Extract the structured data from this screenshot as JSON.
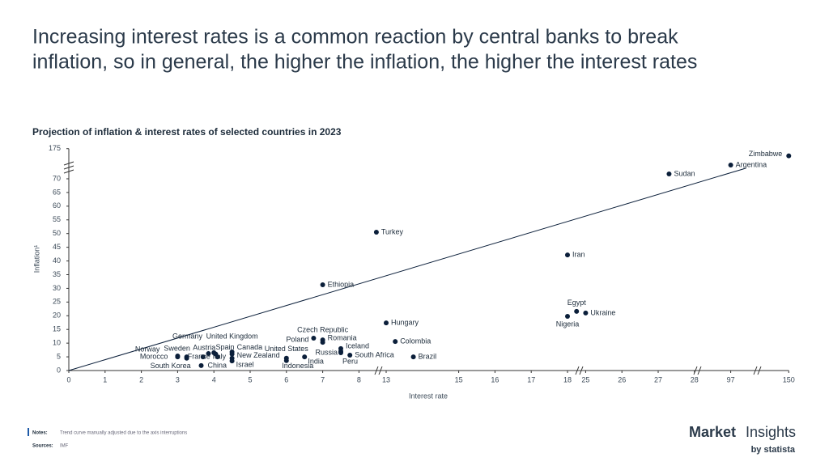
{
  "headline": [
    "Increasing interest rates is a common reaction by central banks to break",
    "inflation, so in general, the higher the inflation, the higher the interest rates"
  ],
  "chart_data": {
    "type": "scatter",
    "title": "Projection of inflation & interest rates of selected countries in 2023",
    "xlabel": "Interest rate",
    "ylabel": "Inflation¹",
    "color": "#0b1f3a",
    "xlim": [
      0,
      150
    ],
    "ylim": [
      0,
      175
    ],
    "xticks": [
      0,
      1,
      2,
      3,
      4,
      5,
      6,
      7,
      8,
      13,
      15,
      16,
      17,
      18,
      25,
      26,
      27,
      28,
      97,
      150
    ],
    "yticks": [
      0,
      5,
      10,
      15,
      20,
      25,
      30,
      35,
      40,
      45,
      50,
      55,
      60,
      65,
      70,
      175
    ],
    "trend": {
      "x": [
        0,
        111
      ],
      "y": [
        0,
        107
      ]
    },
    "points": [
      {
        "label": "Zimbabwe",
        "x": 150,
        "y": 150
      },
      {
        "label": "Argentina",
        "x": 97,
        "y": 118
      },
      {
        "label": "Sudan",
        "x": 27.3,
        "y": 87
      },
      {
        "label": "Turkey",
        "x": 11.2,
        "y": 50.5
      },
      {
        "label": "Iran",
        "x": 18,
        "y": 42.2
      },
      {
        "label": "Ethiopia",
        "x": 7,
        "y": 31.3
      },
      {
        "label": "Egypt",
        "x": 21.5,
        "y": 21.6
      },
      {
        "label": "Ukraine",
        "x": 25,
        "y": 21
      },
      {
        "label": "Nigeria",
        "x": 18,
        "y": 19.8
      },
      {
        "label": "Hungary",
        "x": 13,
        "y": 17.4
      },
      {
        "label": "Colombia",
        "x": 13.25,
        "y": 10.6
      },
      {
        "label": "Brazil",
        "x": 13.75,
        "y": 5
      },
      {
        "label": "South Africa",
        "x": 7.75,
        "y": 5.6
      },
      {
        "label": "Iceland",
        "x": 7.5,
        "y": 8
      },
      {
        "label": "Russia",
        "x": 7.5,
        "y": 7
      },
      {
        "label": "Peru",
        "x": 7.5,
        "y": 6.5
      },
      {
        "label": "Romania",
        "x": 7,
        "y": 11.2
      },
      {
        "label": "Czech Republic",
        "x": 7,
        "y": 10.3
      },
      {
        "label": "Poland",
        "x": 6.75,
        "y": 11.8
      },
      {
        "label": "India",
        "x": 6.5,
        "y": 5
      },
      {
        "label": "Indonesia",
        "x": 6,
        "y": 3.6
      },
      {
        "label": "United States",
        "x": 6,
        "y": 4.5
      },
      {
        "label": "United Kingdom",
        "x": 4.5,
        "y": 6.8
      },
      {
        "label": "Canada",
        "x": 4.5,
        "y": 6
      },
      {
        "label": "New Zealand",
        "x": 4.5,
        "y": 4.5
      },
      {
        "label": "Israel",
        "x": 4.5,
        "y": 3.5
      },
      {
        "label": "Italy",
        "x": 4.1,
        "y": 5
      },
      {
        "label": "Spain",
        "x": 4.05,
        "y": 6
      },
      {
        "label": "Austria",
        "x": 4,
        "y": 6.5
      },
      {
        "label": "Germany",
        "x": 3.85,
        "y": 6.2
      },
      {
        "label": "France",
        "x": 3.7,
        "y": 5
      },
      {
        "label": "Sweden",
        "x": 3.25,
        "y": 5
      },
      {
        "label": "Norway",
        "x": 3,
        "y": 5.3
      },
      {
        "label": "Morocco",
        "x": 3,
        "y": 5
      },
      {
        "label": "South Korea",
        "x": 3.25,
        "y": 4.5
      },
      {
        "label": "China",
        "x": 3.65,
        "y": 1.8
      }
    ]
  },
  "notes": {
    "label": "Notes:",
    "text": "Trend curve manually adjusted due to the axis interruptions"
  },
  "sources": {
    "label": "Sources:",
    "text": "IMF"
  },
  "brand": {
    "name": "Market",
    "suffix": "Insights",
    "by": "by statista"
  }
}
